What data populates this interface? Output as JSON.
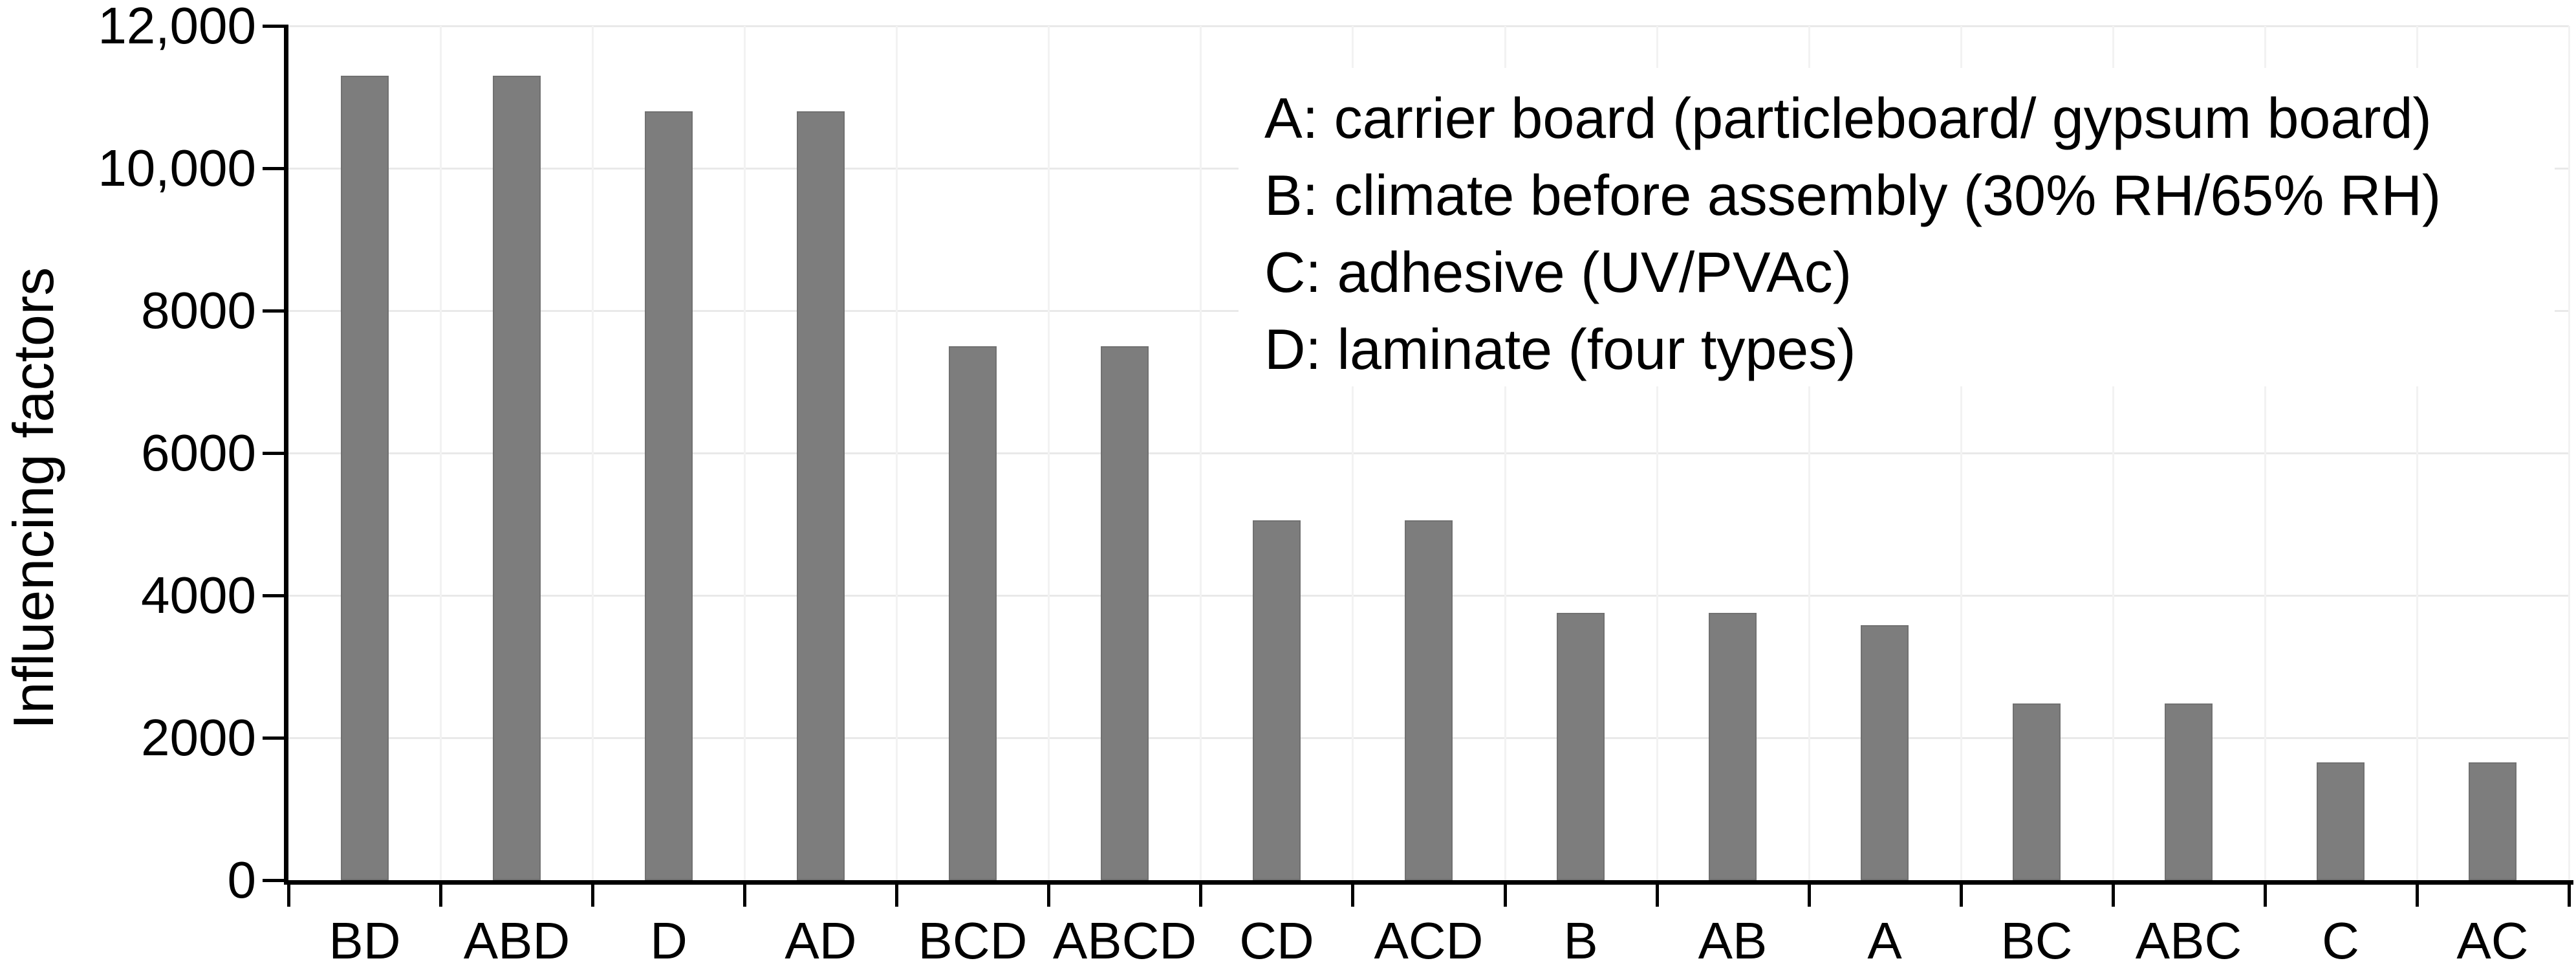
{
  "figure": {
    "background": "#ffffff",
    "text_color": "#000000"
  },
  "chart_data": {
    "type": "bar",
    "title": "",
    "categories": [
      "BD",
      "ABD",
      "D",
      "AD",
      "BCD",
      "ABCD",
      "CD",
      "ACD",
      "B",
      "AB",
      "A",
      "BC",
      "ABC",
      "C",
      "AC"
    ],
    "values": [
      11300,
      11300,
      10800,
      10800,
      7500,
      7500,
      5050,
      5050,
      3750,
      3750,
      3580,
      2480,
      2480,
      1650,
      1650
    ],
    "xlabel": "",
    "ylabel": "Influencing factors",
    "ylim": [
      0,
      12000
    ],
    "ytick_interval": 2000,
    "yticks": [
      {
        "value": 0,
        "label": "0"
      },
      {
        "value": 2000,
        "label": "2000"
      },
      {
        "value": 4000,
        "label": "4000"
      },
      {
        "value": 6000,
        "label": "6000"
      },
      {
        "value": 8000,
        "label": "8000"
      },
      {
        "value": 10000,
        "label": "10,000"
      },
      {
        "value": 12000,
        "label": "12,000"
      }
    ],
    "grid": {
      "horizontal": true,
      "vertical": true
    },
    "bar_color": "#7d7d7d",
    "bar_edge_color": "#717171",
    "h_gridline_color": "#e9e9e9",
    "v_gridline_color": "#f2f2f2",
    "axis_color": "#000000",
    "legend_position": "top-right",
    "annotation_lines": [
      "A: carrier board (particleboard/ gypsum board)",
      "B: climate before assembly (30% RH/65% RH)",
      "C: adhesive (UV/PVAc)",
      "D: laminate (four types)"
    ]
  }
}
